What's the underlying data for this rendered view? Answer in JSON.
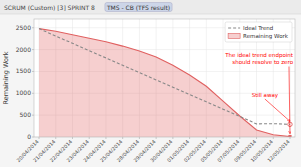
{
  "chart_data": {
    "type": "line",
    "subtitle": [
      "SCRUM (Custom) [3]  SPRINT 8",
      "TMS - CB (TFS result)"
    ],
    "ylabel": "Remaining Work",
    "categories": [
      "20/04/2014",
      "21/04/2014",
      "22/04/2014",
      "23/04/2014",
      "24/04/2014",
      "25/04/2014",
      "28/04/2014",
      "29/04/2014",
      "30/04/2014",
      "01/05/2014",
      "02/05/2014",
      "05/05/2014",
      "07/05/2014",
      "09/05/2014",
      "10/05/2014",
      "12/05/2014"
    ],
    "series": [
      {
        "name": "Ideal Trend",
        "type": "line",
        "color": "#888888",
        "line_style": "dashed",
        "values": [
          2480,
          2310,
          2145,
          1975,
          1810,
          1640,
          1475,
          1305,
          1140,
          970,
          805,
          635,
          470,
          300,
          305,
          290
        ]
      },
      {
        "name": "Remaining Work",
        "type": "area",
        "color": "#e06060",
        "line_style": "solid",
        "values": [
          2480,
          2420,
          2340,
          2260,
          2180,
          2080,
          1970,
          1830,
          1640,
          1420,
          1160,
          820,
          480,
          160,
          50,
          10
        ]
      }
    ],
    "annotations": [
      "Still away",
      "The ideal trend endpoint\nshould resolve to zero"
    ],
    "ylim": [
      0,
      2700
    ],
    "yticks": [
      0,
      500,
      1000,
      1500,
      2000,
      2500
    ],
    "grid": true,
    "legend": "upper right"
  }
}
